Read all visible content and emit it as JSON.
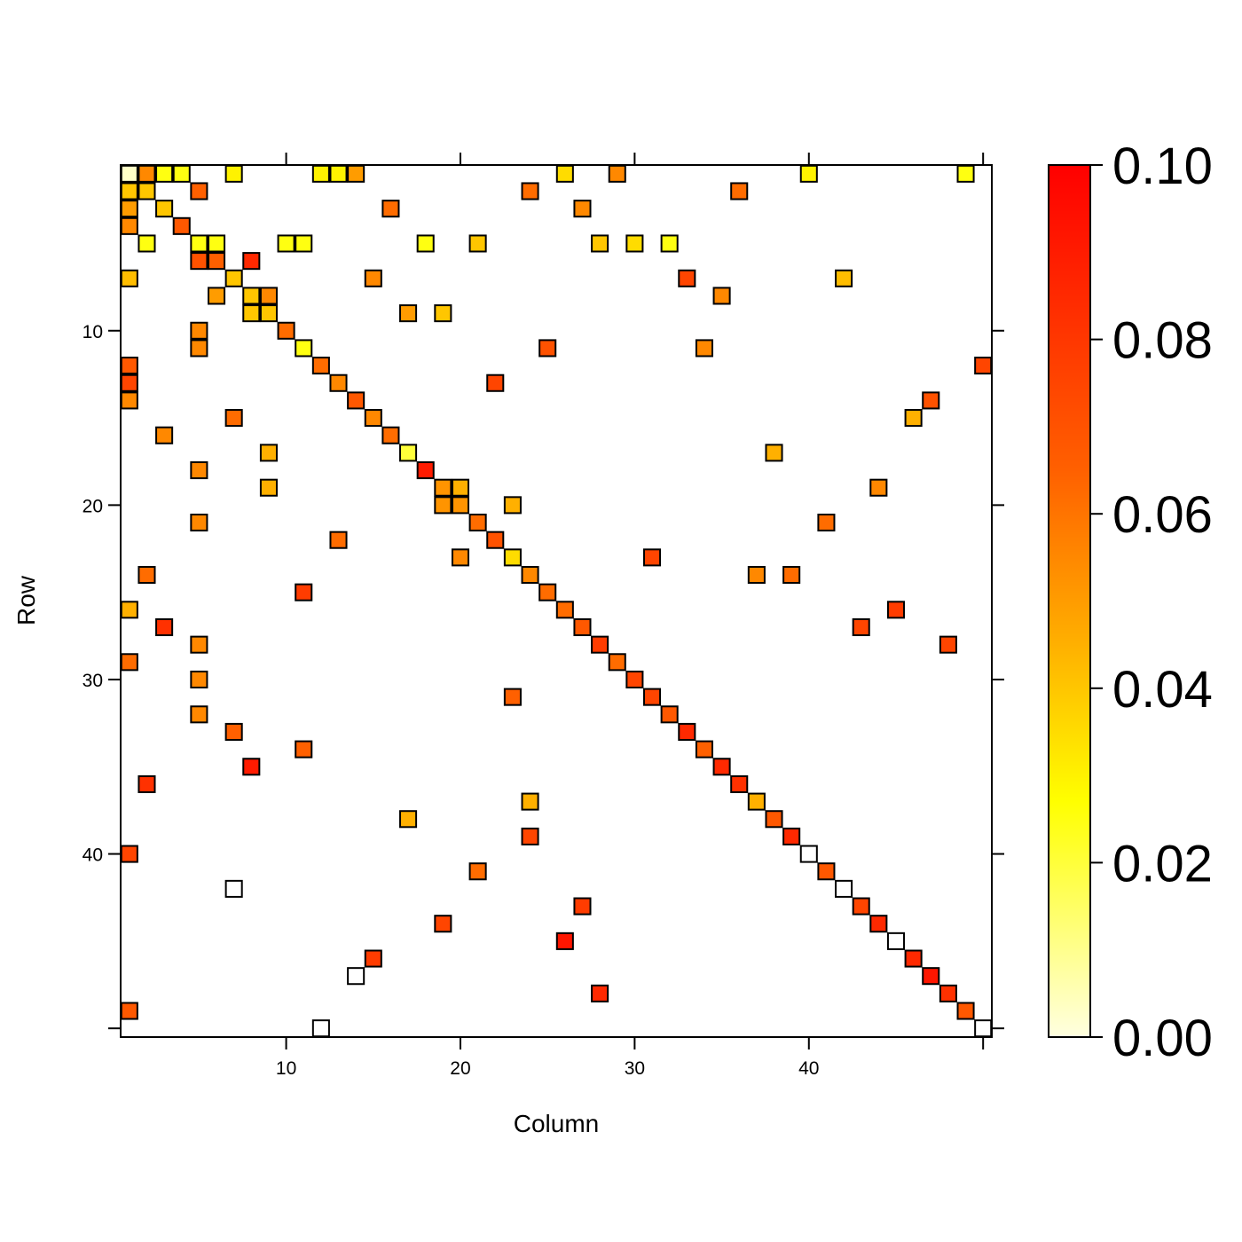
{
  "chart_data": {
    "type": "heatmap",
    "title": "",
    "xlabel": "Column",
    "ylabel": "Row",
    "xlim": [
      0.5,
      50.5
    ],
    "ylim": [
      0.5,
      50.5
    ],
    "x_ticks": [
      "10",
      "20",
      "30",
      "40"
    ],
    "y_ticks": [
      "10",
      "20",
      "30",
      "40"
    ],
    "grid": false,
    "colorbar": {
      "min": 0.0,
      "max": 0.1,
      "ticks": [
        "0.00",
        "0.02",
        "0.04",
        "0.06",
        "0.08",
        "0.10"
      ],
      "colors": [
        "#ffffe0",
        "#ffff00",
        "#ffb000",
        "#ff6000",
        "#ff0000"
      ],
      "placement": "right"
    },
    "cells": [
      [
        1,
        1,
        0.003
      ],
      [
        1,
        2,
        0.055
      ],
      [
        1,
        3,
        0.025
      ],
      [
        1,
        4,
        0.025
      ],
      [
        1,
        7,
        0.03
      ],
      [
        1,
        12,
        0.03
      ],
      [
        1,
        13,
        0.03
      ],
      [
        1,
        14,
        0.05
      ],
      [
        1,
        26,
        0.035
      ],
      [
        1,
        29,
        0.055
      ],
      [
        1,
        40,
        0.03
      ],
      [
        1,
        49,
        0.025
      ],
      [
        2,
        1,
        0.04
      ],
      [
        2,
        2,
        0.04
      ],
      [
        2,
        5,
        0.065
      ],
      [
        2,
        24,
        0.062
      ],
      [
        2,
        36,
        0.062
      ],
      [
        3,
        1,
        0.05
      ],
      [
        3,
        3,
        0.04
      ],
      [
        3,
        16,
        0.062
      ],
      [
        3,
        27,
        0.055
      ],
      [
        4,
        1,
        0.055
      ],
      [
        4,
        4,
        0.068
      ],
      [
        5,
        2,
        0.025
      ],
      [
        5,
        5,
        0.025
      ],
      [
        5,
        6,
        0.025
      ],
      [
        5,
        10,
        0.025
      ],
      [
        5,
        11,
        0.025
      ],
      [
        5,
        18,
        0.025
      ],
      [
        5,
        21,
        0.04
      ],
      [
        5,
        28,
        0.04
      ],
      [
        5,
        30,
        0.035
      ],
      [
        5,
        32,
        0.025
      ],
      [
        6,
        5,
        0.07
      ],
      [
        6,
        6,
        0.065
      ],
      [
        6,
        8,
        0.085
      ],
      [
        7,
        1,
        0.042
      ],
      [
        7,
        7,
        0.04
      ],
      [
        7,
        15,
        0.055
      ],
      [
        7,
        33,
        0.075
      ],
      [
        7,
        42,
        0.042
      ],
      [
        8,
        6,
        0.05
      ],
      [
        8,
        8,
        0.04
      ],
      [
        8,
        9,
        0.055
      ],
      [
        8,
        35,
        0.055
      ],
      [
        9,
        8,
        0.04
      ],
      [
        9,
        9,
        0.04
      ],
      [
        9,
        17,
        0.05
      ],
      [
        9,
        19,
        0.04
      ],
      [
        10,
        5,
        0.055
      ],
      [
        10,
        10,
        0.062
      ],
      [
        11,
        5,
        0.055
      ],
      [
        11,
        11,
        0.025
      ],
      [
        11,
        25,
        0.07
      ],
      [
        11,
        34,
        0.055
      ],
      [
        12,
        1,
        0.068
      ],
      [
        12,
        12,
        0.062
      ],
      [
        12,
        50,
        0.075
      ],
      [
        13,
        1,
        0.075
      ],
      [
        13,
        13,
        0.055
      ],
      [
        13,
        22,
        0.075
      ],
      [
        14,
        1,
        0.055
      ],
      [
        14,
        14,
        0.068
      ],
      [
        14,
        47,
        0.07
      ],
      [
        15,
        7,
        0.062
      ],
      [
        15,
        15,
        0.055
      ],
      [
        15,
        46,
        0.045
      ],
      [
        16,
        3,
        0.055
      ],
      [
        16,
        16,
        0.062
      ],
      [
        17,
        9,
        0.045
      ],
      [
        17,
        17,
        0.02
      ],
      [
        17,
        38,
        0.045
      ],
      [
        18,
        5,
        0.055
      ],
      [
        18,
        18,
        0.09
      ],
      [
        19,
        9,
        0.045
      ],
      [
        19,
        19,
        0.052
      ],
      [
        19,
        20,
        0.045
      ],
      [
        19,
        44,
        0.055
      ],
      [
        20,
        19,
        0.052
      ],
      [
        20,
        20,
        0.052
      ],
      [
        20,
        23,
        0.045
      ],
      [
        21,
        5,
        0.055
      ],
      [
        21,
        21,
        0.062
      ],
      [
        21,
        41,
        0.062
      ],
      [
        22,
        13,
        0.062
      ],
      [
        22,
        22,
        0.07
      ],
      [
        23,
        20,
        0.055
      ],
      [
        23,
        23,
        0.035
      ],
      [
        23,
        31,
        0.075
      ],
      [
        24,
        2,
        0.062
      ],
      [
        24,
        24,
        0.055
      ],
      [
        24,
        37,
        0.055
      ],
      [
        24,
        39,
        0.062
      ],
      [
        25,
        11,
        0.078
      ],
      [
        25,
        25,
        0.062
      ],
      [
        26,
        1,
        0.045
      ],
      [
        26,
        26,
        0.062
      ],
      [
        26,
        45,
        0.078
      ],
      [
        27,
        3,
        0.082
      ],
      [
        27,
        27,
        0.068
      ],
      [
        27,
        43,
        0.075
      ],
      [
        28,
        5,
        0.055
      ],
      [
        28,
        28,
        0.078
      ],
      [
        28,
        48,
        0.075
      ],
      [
        29,
        1,
        0.062
      ],
      [
        29,
        29,
        0.062
      ],
      [
        30,
        5,
        0.055
      ],
      [
        30,
        30,
        0.075
      ],
      [
        31,
        23,
        0.065
      ],
      [
        31,
        31,
        0.075
      ],
      [
        32,
        5,
        0.055
      ],
      [
        32,
        32,
        0.068
      ],
      [
        33,
        7,
        0.065
      ],
      [
        33,
        33,
        0.085
      ],
      [
        34,
        11,
        0.065
      ],
      [
        34,
        34,
        0.065
      ],
      [
        35,
        8,
        0.09
      ],
      [
        35,
        35,
        0.085
      ],
      [
        36,
        2,
        0.082
      ],
      [
        36,
        36,
        0.082
      ],
      [
        37,
        24,
        0.045
      ],
      [
        37,
        37,
        0.045
      ],
      [
        38,
        17,
        0.045
      ],
      [
        38,
        38,
        0.068
      ],
      [
        39,
        24,
        0.075
      ],
      [
        39,
        39,
        0.085
      ],
      [
        40,
        1,
        0.075
      ],
      [
        40,
        40,
        0.0
      ],
      [
        41,
        21,
        0.062
      ],
      [
        41,
        41,
        0.068
      ],
      [
        42,
        7,
        0.0
      ],
      [
        42,
        42,
        0.0
      ],
      [
        43,
        27,
        0.078
      ],
      [
        43,
        43,
        0.075
      ],
      [
        44,
        19,
        0.075
      ],
      [
        44,
        44,
        0.085
      ],
      [
        45,
        26,
        0.092
      ],
      [
        45,
        45,
        0.0
      ],
      [
        46,
        15,
        0.078
      ],
      [
        46,
        46,
        0.085
      ],
      [
        47,
        14,
        0.0
      ],
      [
        47,
        47,
        0.092
      ],
      [
        48,
        28,
        0.085
      ],
      [
        48,
        48,
        0.082
      ],
      [
        49,
        1,
        0.068
      ],
      [
        49,
        49,
        0.068
      ],
      [
        50,
        12,
        0.0
      ],
      [
        50,
        50,
        0.0
      ]
    ]
  }
}
